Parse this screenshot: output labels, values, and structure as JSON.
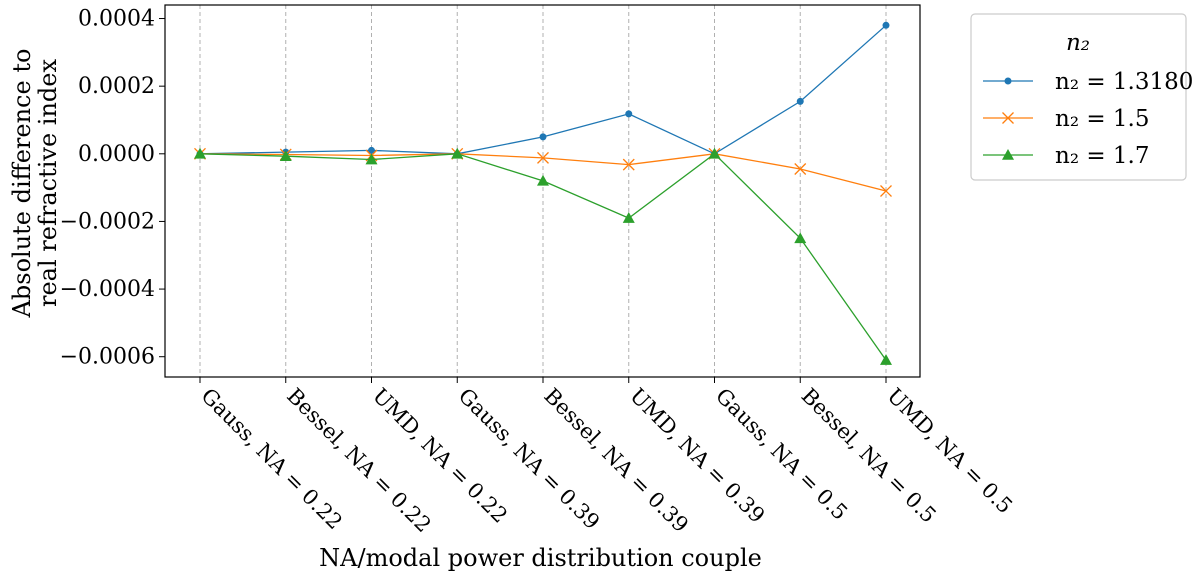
{
  "chart_data": {
    "type": "line",
    "xlabel": "NA/modal power distribution couple",
    "ylabel_lines": [
      "Absolute difference to",
      "real refractive index"
    ],
    "categories": [
      "Gauss, NA = 0.22",
      "Bessel, NA = 0.22",
      "UMD, NA = 0.22",
      "Gauss, NA = 0.39",
      "Bessel, NA = 0.39",
      "UMD, NA = 0.39",
      "Gauss, NA = 0.5",
      "Bessel, NA = 0.5",
      "UMD, NA = 0.5"
    ],
    "ylim": [
      -0.00066,
      0.00044
    ],
    "yticks": [
      -0.0006,
      -0.0004,
      -0.0002,
      0.0,
      0.0002,
      0.0004
    ],
    "ytick_labels": [
      "−0.0006",
      "−0.0004",
      "−0.0002",
      "0.0000",
      "0.0002",
      "0.0004"
    ],
    "grid": "vertical dashed at each category",
    "legend": {
      "title": "n₂",
      "placement": "outside-right-top"
    },
    "series": [
      {
        "name": "n₂ = 1.3180",
        "color": "#1f77b4",
        "marker": "circle",
        "values": [
          0.0,
          5e-06,
          1e-05,
          0.0,
          5e-05,
          0.000118,
          0.0,
          0.000155,
          0.00038
        ]
      },
      {
        "name": "n₂ = 1.5",
        "color": "#ff7f0e",
        "marker": "x",
        "values": [
          0.0,
          -2e-06,
          -5e-06,
          0.0,
          -1.2e-05,
          -3.2e-05,
          0.0,
          -4.5e-05,
          -0.00011
        ]
      },
      {
        "name": "n₂ = 1.7",
        "color": "#2ca02c",
        "marker": "triangle",
        "values": [
          0.0,
          -7e-06,
          -1.7e-05,
          0.0,
          -8e-05,
          -0.00019,
          0.0,
          -0.00025,
          -0.00061
        ]
      }
    ]
  }
}
